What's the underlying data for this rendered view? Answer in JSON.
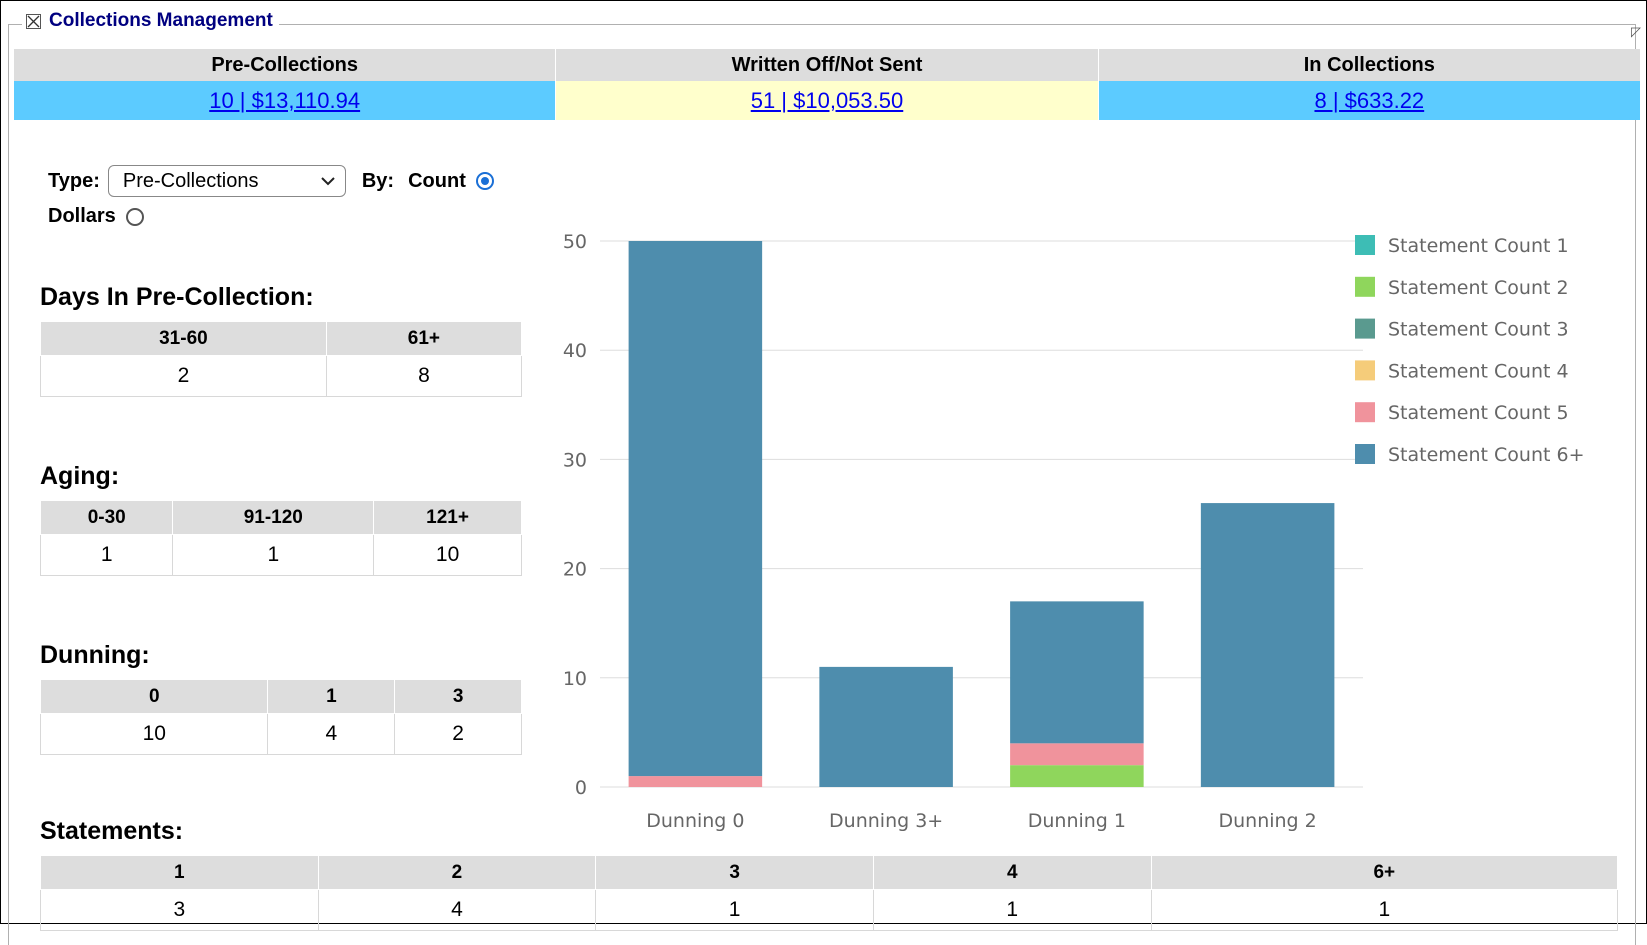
{
  "panel": {
    "title": "Collections Management"
  },
  "summary": [
    {
      "header": "Pre-Collections",
      "value": "10 | $13,110.94",
      "bg": "#5ccbff"
    },
    {
      "header": "Written Off/Not Sent",
      "value": "51 | $10,053.50",
      "bg": "#ffffcc"
    },
    {
      "header": "In Collections",
      "value": "8 | $633.22",
      "bg": "#5ccbff"
    }
  ],
  "controls": {
    "type_label": "Type:",
    "type_value": "Pre-Collections",
    "by_label": "By:",
    "count_label": "Count",
    "dollars_label": "Dollars",
    "selected": "Count"
  },
  "days": {
    "title": "Days In Pre-Collection:",
    "headers": [
      "31-60",
      "61+"
    ],
    "values": [
      "2",
      "8"
    ]
  },
  "aging": {
    "title": "Aging:",
    "headers": [
      "0-30",
      "91-120",
      "121+"
    ],
    "values": [
      "1",
      "1",
      "10"
    ]
  },
  "dunning": {
    "title": "Dunning:",
    "headers": [
      "0",
      "1",
      "3"
    ],
    "values": [
      "10",
      "4",
      "2"
    ]
  },
  "statements": {
    "title": "Statements:",
    "headers": [
      "1",
      "2",
      "3",
      "4",
      "6+"
    ],
    "values": [
      "3",
      "4",
      "1",
      "1",
      "1"
    ]
  },
  "chart_data": {
    "type": "bar",
    "stacked": true,
    "categories": [
      "Dunning 0",
      "Dunning 3+",
      "Dunning 1",
      "Dunning 2"
    ],
    "ylim": [
      0,
      50
    ],
    "yticks": [
      0,
      10,
      20,
      30,
      40,
      50
    ],
    "grid": true,
    "legend_position": "right",
    "series": [
      {
        "name": "Statement Count 1",
        "color": "#3dbdb5",
        "values": [
          0,
          0,
          0,
          0
        ]
      },
      {
        "name": "Statement Count 2",
        "color": "#8fd65c",
        "values": [
          0,
          0,
          2,
          0
        ]
      },
      {
        "name": "Statement Count 3",
        "color": "#5a9a8f",
        "values": [
          0,
          0,
          0,
          0
        ]
      },
      {
        "name": "Statement Count 4",
        "color": "#f5cc7a",
        "values": [
          0,
          0,
          0,
          0
        ]
      },
      {
        "name": "Statement Count 5",
        "color": "#f0939c",
        "values": [
          1,
          0,
          2,
          0
        ]
      },
      {
        "name": "Statement Count 6+",
        "color": "#4e8dad",
        "values": [
          49,
          11,
          13,
          26
        ]
      }
    ]
  }
}
